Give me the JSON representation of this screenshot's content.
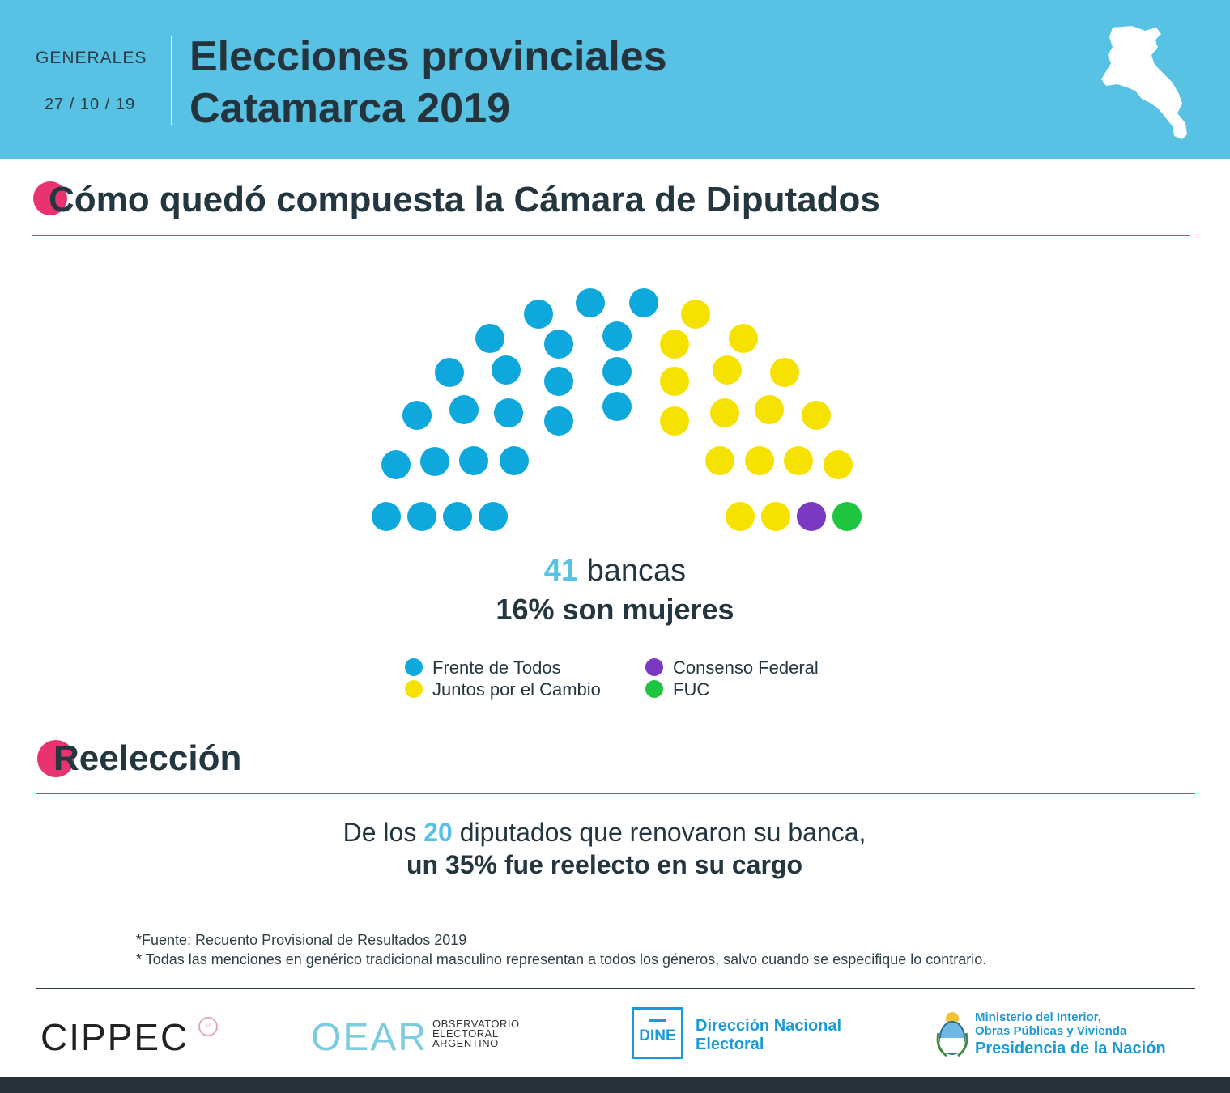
{
  "header": {
    "kicker": "GENERALES",
    "date": "27 / 10 / 19",
    "title_line1": "Elecciones provinciales",
    "title_line2": "Catamarca 2019"
  },
  "section1": {
    "title": "Cómo quedó compuesta la Cámara de Diputados"
  },
  "chart_data": {
    "type": "parliament",
    "series": [
      {
        "name": "Frente de Todos",
        "seats": 23,
        "color": "#0ea8dc"
      },
      {
        "name": "Juntos por el Cambio",
        "seats": 16,
        "color": "#f5e200"
      },
      {
        "name": "Consenso Federal",
        "seats": 1,
        "color": "#7b38c1"
      },
      {
        "name": "FUC",
        "seats": 1,
        "color": "#1fc43f"
      }
    ],
    "total_number": "41",
    "total_label": "bancas",
    "women_label": "16% son mujeres"
  },
  "legend": [
    {
      "label": "Frente de Todos",
      "color": "#0ea8dc"
    },
    {
      "label": "Juntos por el Cambio",
      "color": "#f5e200"
    },
    {
      "label": "Consenso Federal",
      "color": "#7b38c1"
    },
    {
      "label": "FUC",
      "color": "#1fc43f"
    }
  ],
  "section2": {
    "title": "Reelección",
    "line1_pre": "De los ",
    "line1_num": "20",
    "line1_post": " diputados que renovaron su banca,",
    "line2": "un 35% fue reelecto en su cargo"
  },
  "notes": {
    "source": "*Fuente: Recuento Provisional de Resultados 2019",
    "gender": "* Todas las menciones en genérico tradicional masculino representan a todos los géneros, salvo cuando se especifique lo contrario."
  },
  "footer": {
    "cippec": "CIPPEC",
    "cippec_badge": "P",
    "oear": "OEAR",
    "oear_sub": "OBSERVATORIO ELECTORAL ARGENTINO",
    "dine": "DINE",
    "dine_label": "Dirección Nacional Electoral",
    "ministry_line1": "Ministerio del Interior,",
    "ministry_line2": "Obras Públicas y Vivienda",
    "ministry_line3": "Presidencia de la Nación"
  },
  "colors": {
    "header_bg": "#57c2e3",
    "accent_pink": "#e8336f",
    "text_dark": "#243640"
  }
}
